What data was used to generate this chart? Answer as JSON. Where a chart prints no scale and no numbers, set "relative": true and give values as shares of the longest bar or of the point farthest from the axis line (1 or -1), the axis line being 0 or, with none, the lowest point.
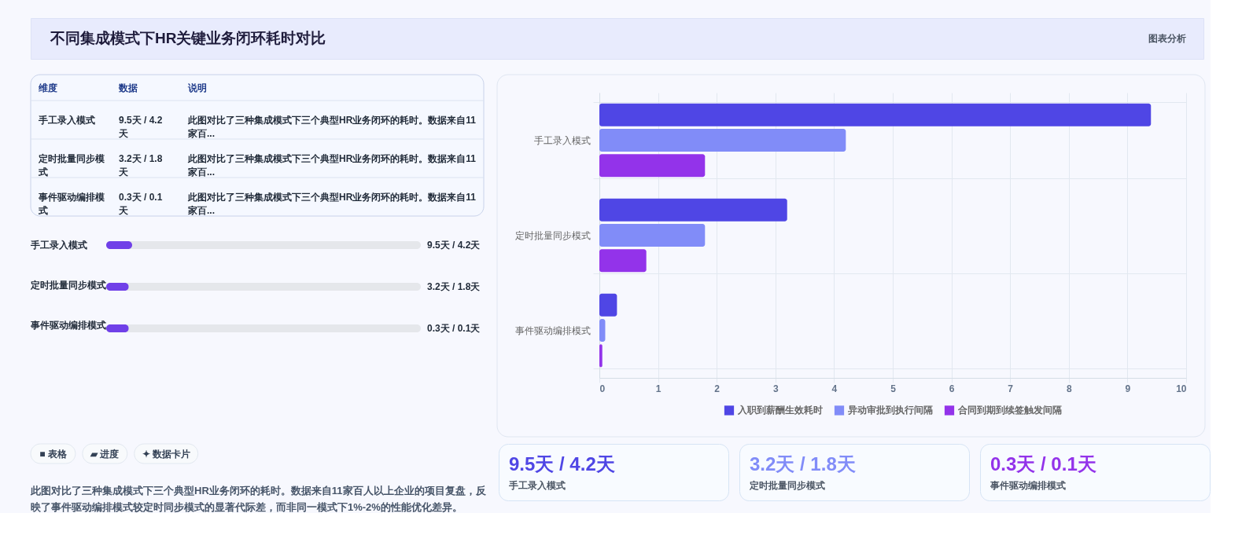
{
  "chart_data": [
    {
      "type": "other",
      "title": "不同集成模式下HR关键业务闭环耗时对比",
      "annotations": [
        "图表分析"
      ]
    },
    {
      "type": "other",
      "categories": [
        "手工录入模式",
        "定时批量同步模式",
        "事件驱动编排模式"
      ],
      "value_labels": [
        "9.5天 / 4.2天",
        "3.2天 / 1.8天",
        "0.3天 / 0.1天"
      ],
      "annotations": [
        "维度",
        "数据",
        "说明",
        "此图对比了三种集成模式下三个典型HR业务闭环的耗时。数据来自11家百...",
        "此图对比了三种集成模式下三个典型HR业务闭环的耗时。数据来自11家百...",
        "此图对比了三种集成模式下三个典型HR业务闭环的耗时。数据来自11家百..."
      ]
    },
    {
      "type": "bar",
      "orientation": "horizontal",
      "relative": true,
      "categories": [
        "手工录入模式",
        "定时批量同步模式",
        "事件驱动编排模式"
      ],
      "values": [
        1,
        0.87,
        0.87
      ],
      "color": "#7040e8",
      "annotations": [
        "9.5天 / 4.2天",
        "3.2天 / 1.8天",
        "0.3天 / 0.1天"
      ]
    },
    {
      "type": "other",
      "annotations": [
        "■ 表格",
        "▰ 进度",
        "✦ 数据卡片",
        "此图对比了三种集成模式下三个典型HR业务闭环的耗时。数据来自11家百人以上企业的项目复盘，反映了事件驱动编排模式较定时同步模式的显著代际差，而非同一模式下1%-2%的性能优化差异。"
      ]
    },
    {
      "type": "bar",
      "orientation": "horizontal",
      "categories": [
        "手工录入模式",
        "定时批量同步模式",
        "事件驱动编排模式"
      ],
      "series": [
        {
          "name": "入职到薪酬生效耗时",
          "color": "#4f46e5",
          "values": [
            9.4,
            3.2,
            0.3
          ]
        },
        {
          "name": "异动审批到执行间隔",
          "color": "#818cf8",
          "values": [
            4.2,
            1.8,
            0.1
          ]
        },
        {
          "name": "合同到期到续签触发间隔",
          "color": "#9333ea",
          "values": [
            1.8,
            0.8,
            0.05
          ]
        }
      ],
      "xlim": [
        0,
        10
      ],
      "xticks": [
        0,
        1,
        2,
        3,
        4,
        5,
        6,
        7,
        8,
        9,
        10
      ],
      "grid": true,
      "legend": "bottom"
    },
    {
      "type": "other",
      "categories": [
        "手工录入模式",
        "定时批量同步模式",
        "事件驱动编排模式"
      ],
      "value_labels": [
        "9.5天 / 4.2天",
        "3.2天 / 1.8天",
        "0.3天 / 0.1天"
      ]
    }
  ]
}
